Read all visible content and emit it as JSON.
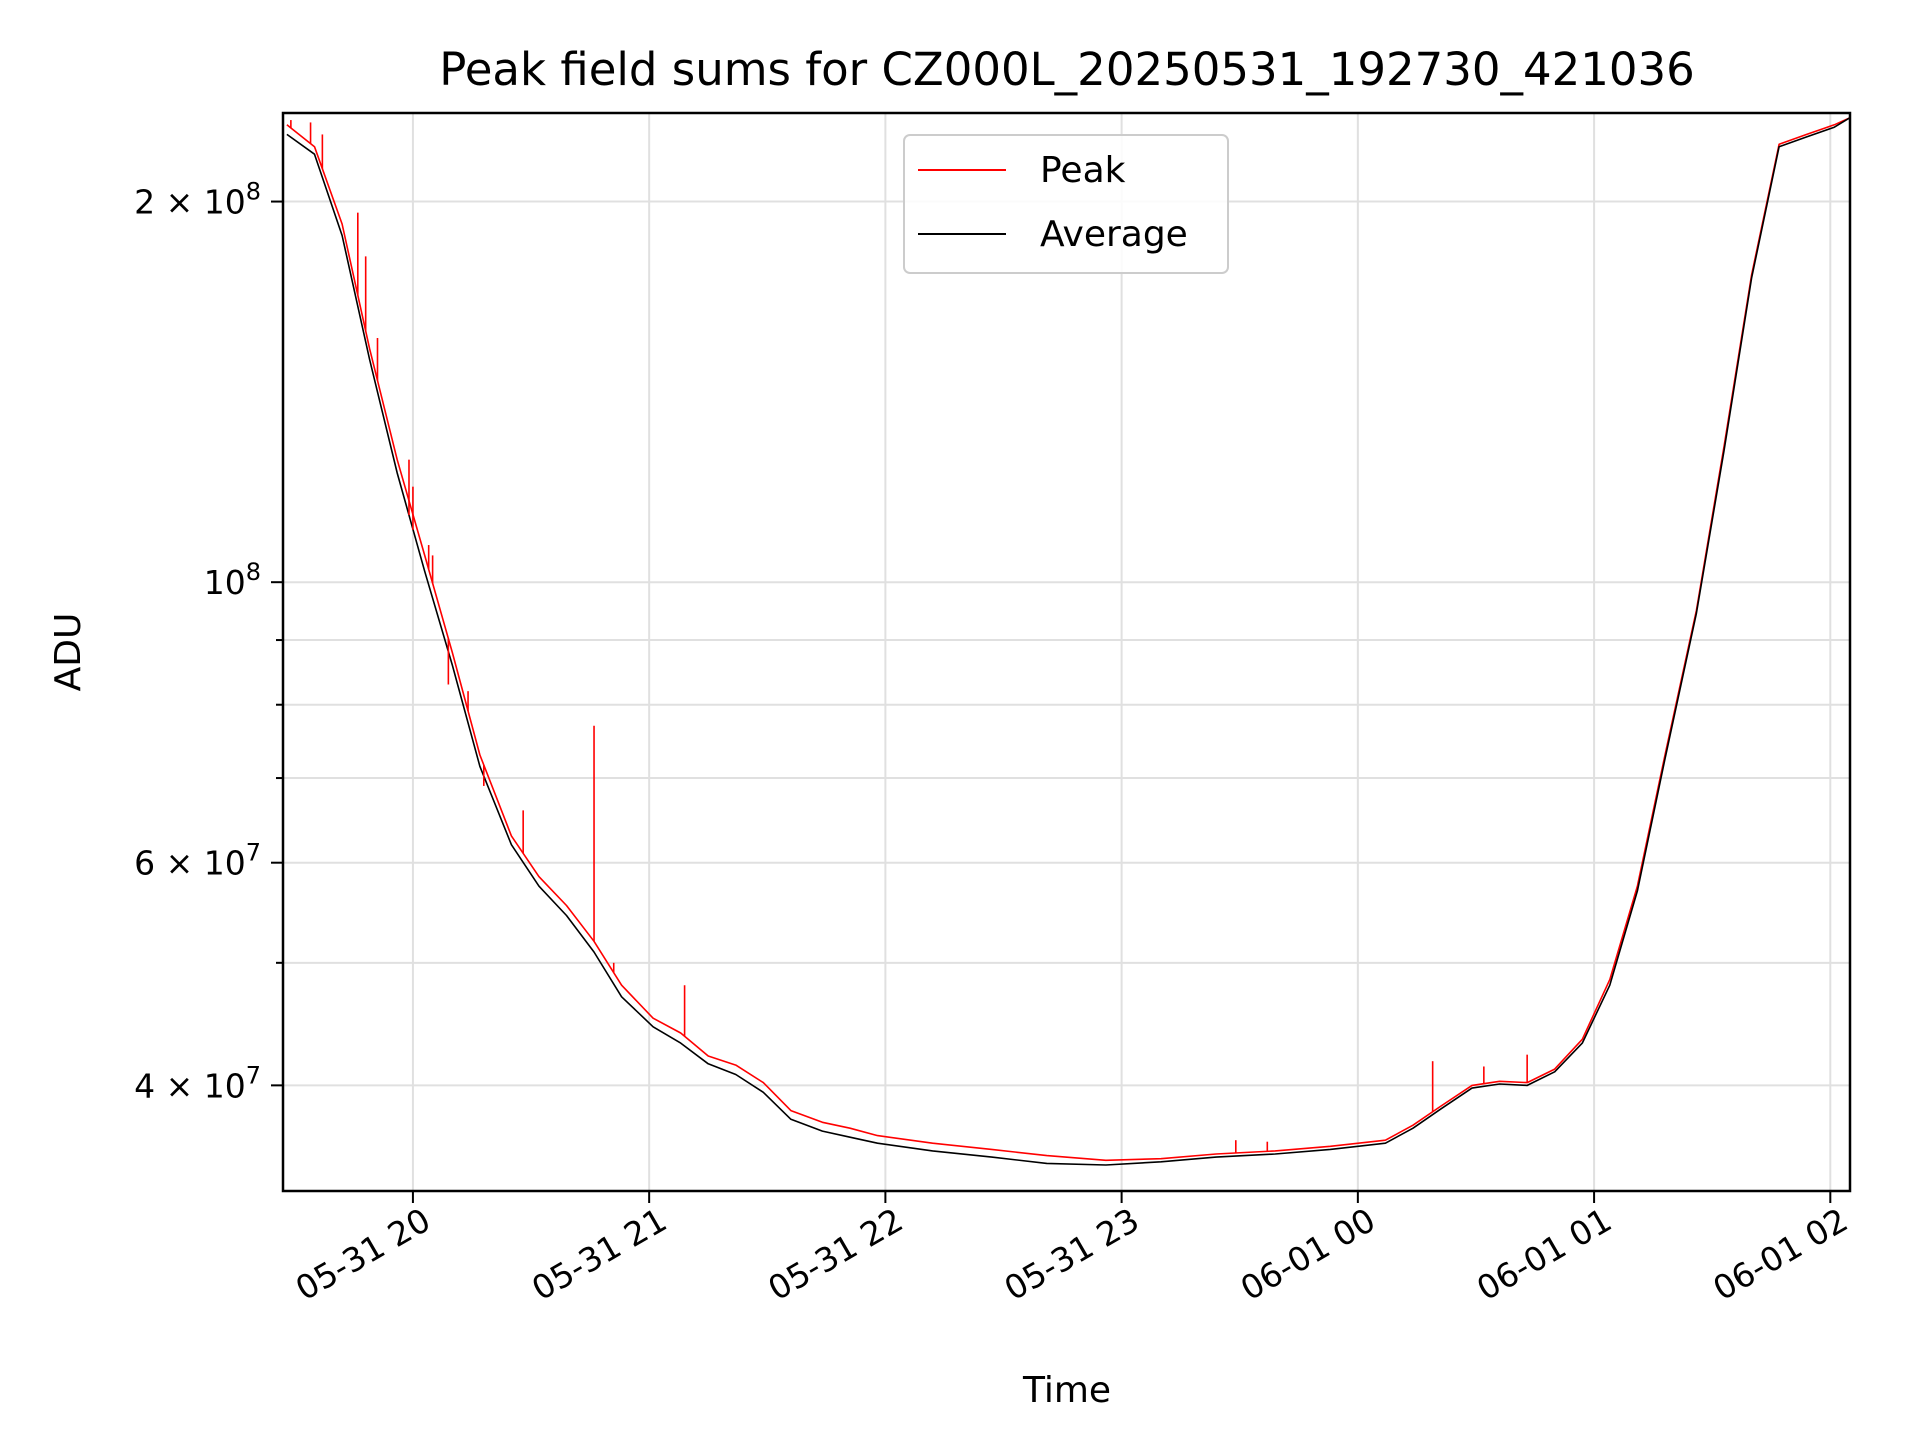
{
  "chart_data": {
    "type": "line",
    "title": "Peak field sums for CZ000L_20250531_192730_421036",
    "xlabel": "Time",
    "ylabel": "ADU",
    "yscale": "log",
    "xlim": [
      "2025-05-31 19:27",
      "2025-06-01 02:05"
    ],
    "ylim": [
      33000000,
      235000000
    ],
    "grid": true,
    "legend_position": "top-center",
    "x_ticks": [
      {
        "value": "2025-05-31 20:00",
        "label": "05-31 20"
      },
      {
        "value": "2025-05-31 21:00",
        "label": "05-31 21"
      },
      {
        "value": "2025-05-31 22:00",
        "label": "05-31 22"
      },
      {
        "value": "2025-05-31 23:00",
        "label": "05-31 23"
      },
      {
        "value": "2025-06-01 00:00",
        "label": "06-01 00"
      },
      {
        "value": "2025-06-01 01:00",
        "label": "06-01 01"
      },
      {
        "value": "2025-06-01 02:00",
        "label": "06-01 02"
      }
    ],
    "y_ticks": [
      {
        "value": 40000000,
        "mantissa": "4",
        "exponent": "7"
      },
      {
        "value": 60000000,
        "mantissa": "6",
        "exponent": "7"
      },
      {
        "value": 100000000,
        "mantissa": "",
        "exponent": "8"
      },
      {
        "value": 200000000,
        "mantissa": "2",
        "exponent": "8"
      }
    ],
    "y_minor_ticks": [
      50000000,
      70000000,
      80000000,
      90000000
    ],
    "tick_label_base": "10",
    "tick_label_times": "×",
    "series": [
      {
        "name": "Peak",
        "color": "#ff0000",
        "x": [
          "2025-05-31 19:28",
          "2025-05-31 19:35",
          "2025-05-31 19:42",
          "2025-05-31 19:49",
          "2025-05-31 19:56",
          "2025-05-31 20:03",
          "2025-05-31 20:10",
          "2025-05-31 20:17",
          "2025-05-31 20:25",
          "2025-05-31 20:32",
          "2025-05-31 20:39",
          "2025-05-31 20:46",
          "2025-05-31 20:53",
          "2025-05-31 21:01",
          "2025-05-31 21:08",
          "2025-05-31 21:15",
          "2025-05-31 21:22",
          "2025-05-31 21:29",
          "2025-05-31 21:36",
          "2025-05-31 21:44",
          "2025-05-31 21:51",
          "2025-05-31 21:58",
          "2025-05-31 22:12",
          "2025-05-31 22:27",
          "2025-05-31 22:41",
          "2025-05-31 22:56",
          "2025-05-31 23:10",
          "2025-05-31 23:24",
          "2025-05-31 23:39",
          "2025-05-31 23:53",
          "2025-06-01 00:07",
          "2025-06-01 00:14",
          "2025-06-01 00:21",
          "2025-06-01 00:29",
          "2025-06-01 00:36",
          "2025-06-01 00:43",
          "2025-06-01 00:50",
          "2025-06-01 00:57",
          "2025-06-01 01:04",
          "2025-06-01 01:11",
          "2025-06-01 01:18",
          "2025-06-01 01:26",
          "2025-06-01 01:33",
          "2025-06-01 01:40",
          "2025-06-01 01:47",
          "2025-06-01 01:54",
          "2025-06-01 02:01",
          "2025-06-01 02:05"
        ],
        "values": [
          230000000,
          221000000,
          192000000,
          153000000,
          125000000,
          105000000,
          88000000,
          73000000,
          63000000,
          58500000,
          55500000,
          52000000,
          48000000,
          45200000,
          44000000,
          42200000,
          41500000,
          40200000,
          38200000,
          37400000,
          37000000,
          36500000,
          36000000,
          35600000,
          35200000,
          34900000,
          35000000,
          35300000,
          35500000,
          35800000,
          36200000,
          37200000,
          38500000,
          40000000,
          40300000,
          40200000,
          41200000,
          43500000,
          48500000,
          57500000,
          73000000,
          95000000,
          128000000,
          175000000,
          222000000,
          226000000,
          230000000,
          233000000
        ]
      },
      {
        "name": "Average",
        "color": "#000000",
        "x": [
          "2025-05-31 19:28",
          "2025-05-31 19:35",
          "2025-05-31 19:42",
          "2025-05-31 19:49",
          "2025-05-31 19:56",
          "2025-05-31 20:03",
          "2025-05-31 20:10",
          "2025-05-31 20:17",
          "2025-05-31 20:25",
          "2025-05-31 20:32",
          "2025-05-31 20:39",
          "2025-05-31 20:46",
          "2025-05-31 20:53",
          "2025-05-31 21:01",
          "2025-05-31 21:08",
          "2025-05-31 21:15",
          "2025-05-31 21:22",
          "2025-05-31 21:29",
          "2025-05-31 21:36",
          "2025-05-31 21:44",
          "2025-05-31 21:51",
          "2025-05-31 21:58",
          "2025-05-31 22:12",
          "2025-05-31 22:27",
          "2025-05-31 22:41",
          "2025-05-31 22:56",
          "2025-05-31 23:10",
          "2025-05-31 23:24",
          "2025-05-31 23:39",
          "2025-05-31 23:53",
          "2025-06-01 00:07",
          "2025-06-01 00:14",
          "2025-06-01 00:21",
          "2025-06-01 00:29",
          "2025-06-01 00:36",
          "2025-06-01 00:43",
          "2025-06-01 00:50",
          "2025-06-01 00:57",
          "2025-06-01 01:04",
          "2025-06-01 01:11",
          "2025-06-01 01:18",
          "2025-06-01 01:26",
          "2025-06-01 01:33",
          "2025-06-01 01:40",
          "2025-06-01 01:47",
          "2025-06-01 01:54",
          "2025-06-01 02:01",
          "2025-06-01 02:05"
        ],
        "values": [
          226000000,
          218000000,
          188000000,
          150000000,
          122000000,
          102000000,
          86000000,
          71500000,
          62000000,
          57500000,
          54500000,
          51000000,
          47000000,
          44500000,
          43200000,
          41600000,
          40800000,
          39500000,
          37600000,
          36800000,
          36400000,
          36000000,
          35500000,
          35100000,
          34700000,
          34600000,
          34800000,
          35100000,
          35300000,
          35600000,
          36000000,
          37000000,
          38300000,
          39800000,
          40100000,
          40000000,
          41000000,
          43200000,
          48000000,
          57000000,
          72500000,
          94500000,
          127000000,
          174000000,
          221000000,
          225000000,
          229000000,
          233000000
        ]
      }
    ],
    "spikes": {
      "series": "Peak",
      "x": [
        "2025-05-31 19:29",
        "2025-05-31 19:34",
        "2025-05-31 19:37",
        "2025-05-31 19:46",
        "2025-05-31 19:48",
        "2025-05-31 19:51",
        "2025-05-31 19:59",
        "2025-05-31 19:60",
        "2025-05-31 19:59",
        "2025-05-31 20:00",
        "2025-05-31 20:04",
        "2025-05-31 20:05",
        "2025-05-31 20:09",
        "2025-05-31 20:14",
        "2025-05-31 20:18",
        "2025-05-31 20:28",
        "2025-05-31 20:46",
        "2025-05-31 20:51",
        "2025-05-31 21:09",
        "2025-05-31 23:29",
        "2025-05-31 23:37",
        "2025-06-01 00:19",
        "2025-06-01 00:32",
        "2025-06-01 00:43"
      ],
      "values": [
        232000000,
        231000000,
        226000000,
        196000000,
        181000000,
        156000000,
        125000000,
        119000000,
        113000000,
        110000000,
        107000000,
        105000000,
        83000000,
        82000000,
        69000000,
        66000000,
        77000000,
        50000000,
        48000000,
        36200000,
        36100000,
        41800000,
        41400000,
        42300000
      ]
    }
  }
}
